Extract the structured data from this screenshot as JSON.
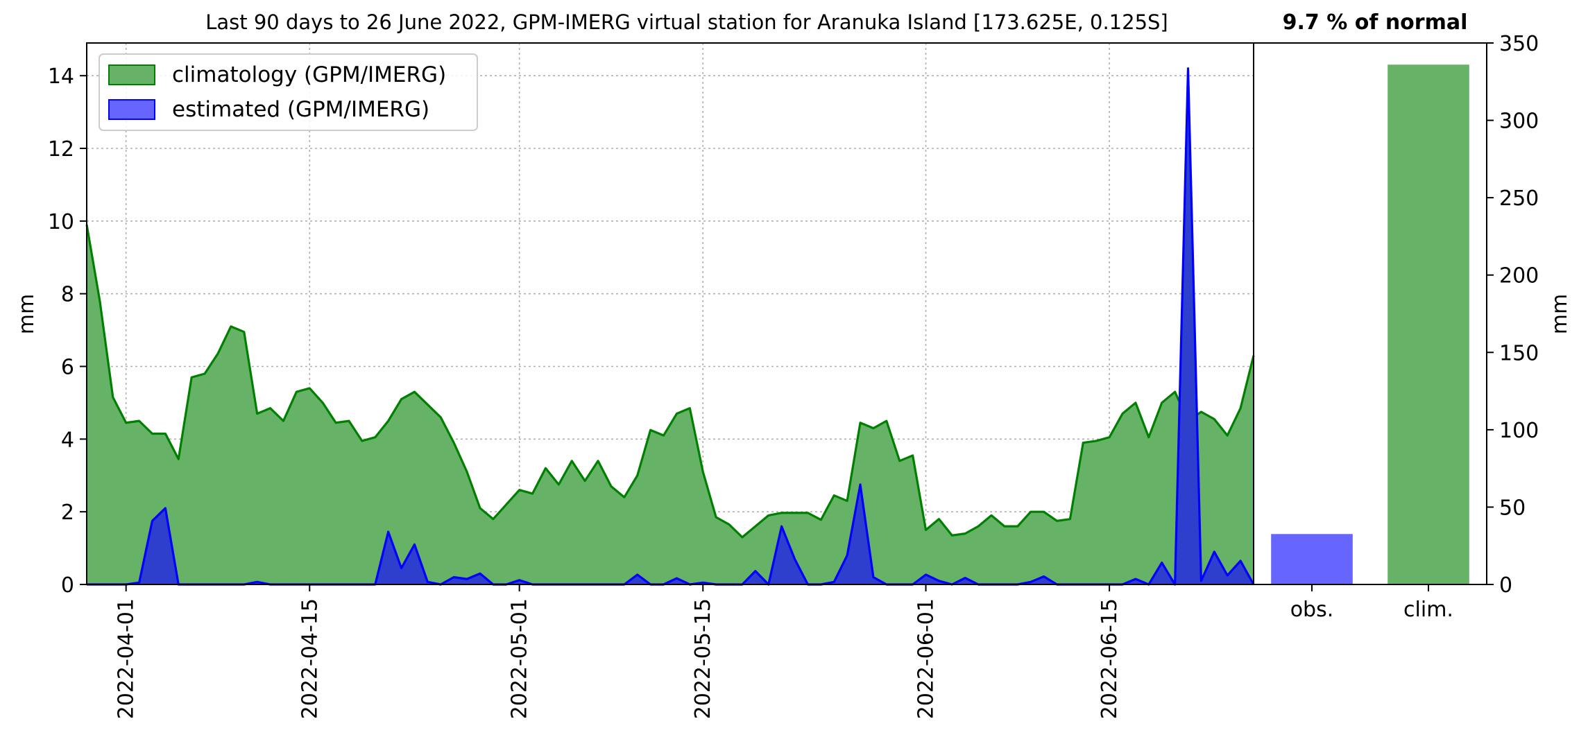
{
  "chart_data": [
    {
      "type": "area",
      "title": "Last 90 days to 26 June 2022, GPM-IMERG virtual station for Aranuka Island [173.625E, 0.125S]",
      "ylabel": "mm",
      "xlabel": "",
      "start_date": "2022-03-29",
      "end_date": "2022-06-26",
      "ylim": [
        0,
        14.9
      ],
      "yticks": [
        0,
        2,
        4,
        6,
        8,
        10,
        12,
        14
      ],
      "xticks": [
        "2022-04-01",
        "2022-04-15",
        "2022-05-01",
        "2022-05-15",
        "2022-06-01",
        "2022-06-15"
      ],
      "grid": true,
      "legend_position": "top-left",
      "series": [
        {
          "name": "climatology (GPM/IMERG)",
          "color": "#008000",
          "fill": "#66b266",
          "values": [
            9.9,
            7.8,
            5.15,
            4.45,
            4.5,
            4.15,
            4.15,
            3.45,
            5.7,
            5.8,
            6.35,
            7.1,
            6.95,
            4.7,
            4.85,
            4.5,
            5.3,
            5.4,
            5.0,
            4.45,
            4.5,
            3.95,
            4.05,
            4.5,
            5.1,
            5.3,
            4.95,
            4.6,
            3.9,
            3.1,
            2.1,
            1.8,
            2.2,
            2.6,
            2.5,
            3.2,
            2.75,
            3.4,
            2.85,
            3.4,
            2.7,
            2.4,
            3.0,
            4.25,
            4.1,
            4.7,
            4.85,
            3.1,
            1.85,
            1.65,
            1.3,
            1.6,
            1.9,
            1.97,
            1.97,
            1.97,
            1.78,
            2.45,
            2.3,
            4.45,
            4.3,
            4.5,
            3.4,
            3.55,
            1.5,
            1.8,
            1.35,
            1.4,
            1.6,
            1.9,
            1.6,
            1.6,
            2.0,
            2.0,
            1.75,
            1.8,
            3.9,
            3.95,
            4.05,
            4.7,
            5.0,
            4.05,
            5.0,
            5.3,
            4.5,
            4.75,
            4.55,
            4.1,
            4.85,
            6.3
          ]
        },
        {
          "name": "estimated (GPM/IMERG)",
          "color": "#0000ff",
          "fill": "#2d3fcc",
          "values": [
            0,
            0,
            0,
            0,
            0.05,
            1.75,
            2.1,
            0,
            0,
            0,
            0,
            0,
            0,
            0.07,
            0,
            0,
            0,
            0,
            0,
            0,
            0,
            0,
            0,
            1.45,
            0.45,
            1.1,
            0.07,
            0,
            0.2,
            0.15,
            0.3,
            0,
            0,
            0.12,
            0,
            0,
            0,
            0,
            0,
            0,
            0,
            0,
            0.27,
            0,
            0,
            0.17,
            0,
            0.05,
            0,
            0,
            0,
            0.37,
            0,
            1.6,
            0.7,
            0,
            0,
            0.07,
            0.8,
            2.75,
            0.2,
            0,
            0,
            0,
            0.27,
            0.1,
            0,
            0.18,
            0,
            0,
            0,
            0,
            0.07,
            0.22,
            0,
            0,
            0,
            0,
            0,
            0,
            0.15,
            0,
            0.6,
            0,
            14.2,
            0.1,
            0.9,
            0.25,
            0.65,
            0
          ]
        }
      ]
    },
    {
      "type": "bar",
      "title": "9.7 % of normal",
      "categories": [
        "obs.",
        "clim."
      ],
      "ylabel": "mm",
      "ylim": [
        0,
        350
      ],
      "yticks": [
        0,
        50,
        100,
        150,
        200,
        250,
        300,
        350
      ],
      "values": [
        32.6,
        336
      ],
      "colors": [
        "#6666ff",
        "#66b266"
      ]
    }
  ]
}
